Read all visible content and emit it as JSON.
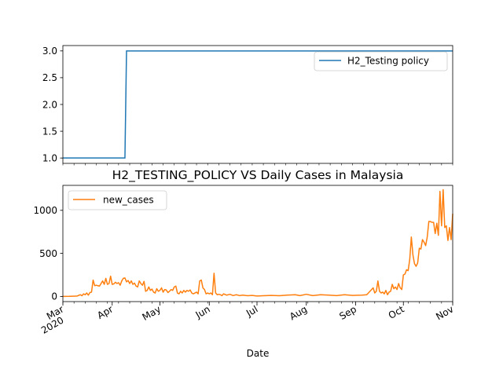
{
  "chart_data": [
    {
      "type": "line",
      "series": [
        {
          "name": "H2_Testing policy",
          "color": "#1f77b4",
          "points": [
            [
              "2020-03-01",
              1
            ],
            [
              "2020-04-09",
              1
            ],
            [
              "2020-04-10",
              3
            ],
            [
              "2020-11-01",
              3
            ]
          ]
        }
      ],
      "ylim": [
        0.9,
        3.1
      ],
      "yticks": [
        "1.0",
        "1.5",
        "2.0",
        "2.5",
        "3.0"
      ],
      "legend_position": "top-right",
      "grid": false
    },
    {
      "type": "line",
      "title": "H2_TESTING_POLICY VS Daily Cases in Malaysia",
      "xlabel": "Date",
      "series": [
        {
          "name": "new_cases",
          "color": "#ff7f0e",
          "points": [
            [
              "2020-03-01",
              0
            ],
            [
              "2020-03-05",
              1
            ],
            [
              "2020-03-08",
              3
            ],
            [
              "2020-03-10",
              5
            ],
            [
              "2020-03-12",
              20
            ],
            [
              "2020-03-13",
              8
            ],
            [
              "2020-03-14",
              30
            ],
            [
              "2020-03-15",
              20
            ],
            [
              "2020-03-16",
              40
            ],
            [
              "2020-03-17",
              15
            ],
            [
              "2020-03-18",
              45
            ],
            [
              "2020-03-19",
              50
            ],
            [
              "2020-03-20",
              190
            ],
            [
              "2020-03-21",
              125
            ],
            [
              "2020-03-22",
              130
            ],
            [
              "2020-03-23",
              125
            ],
            [
              "2020-03-24",
              120
            ],
            [
              "2020-03-25",
              150
            ],
            [
              "2020-03-26",
              180
            ],
            [
              "2020-03-27",
              140
            ],
            [
              "2020-03-28",
              210
            ],
            [
              "2020-03-29",
              140
            ],
            [
              "2020-03-30",
              150
            ],
            [
              "2020-03-31",
              235
            ],
            [
              "2020-04-01",
              140
            ],
            [
              "2020-04-02",
              145
            ],
            [
              "2020-04-03",
              165
            ],
            [
              "2020-04-04",
              150
            ],
            [
              "2020-04-05",
              160
            ],
            [
              "2020-04-06",
              130
            ],
            [
              "2020-04-07",
              180
            ],
            [
              "2020-04-08",
              210
            ],
            [
              "2020-04-09",
              215
            ],
            [
              "2020-04-10",
              170
            ],
            [
              "2020-04-11",
              185
            ],
            [
              "2020-04-12",
              150
            ],
            [
              "2020-04-13",
              180
            ],
            [
              "2020-04-14",
              140
            ],
            [
              "2020-04-15",
              155
            ],
            [
              "2020-04-16",
              120
            ],
            [
              "2020-04-17",
              110
            ],
            [
              "2020-04-18",
              180
            ],
            [
              "2020-04-19",
              150
            ],
            [
              "2020-04-20",
              130
            ],
            [
              "2020-04-21",
              175
            ],
            [
              "2020-04-22",
              60
            ],
            [
              "2020-04-23",
              70
            ],
            [
              "2020-04-24",
              110
            ],
            [
              "2020-04-25",
              70
            ],
            [
              "2020-04-26",
              85
            ],
            [
              "2020-04-27",
              50
            ],
            [
              "2020-04-28",
              40
            ],
            [
              "2020-04-29",
              90
            ],
            [
              "2020-04-30",
              60
            ],
            [
              "2020-05-01",
              70
            ],
            [
              "2020-05-02",
              100
            ],
            [
              "2020-05-03",
              50
            ],
            [
              "2020-05-04",
              80
            ],
            [
              "2020-05-05",
              75
            ],
            [
              "2020-05-06",
              45
            ],
            [
              "2020-05-07",
              60
            ],
            [
              "2020-05-08",
              80
            ],
            [
              "2020-05-09",
              70
            ],
            [
              "2020-05-10",
              110
            ],
            [
              "2020-05-11",
              120
            ],
            [
              "2020-05-12",
              40
            ],
            [
              "2020-05-13",
              30
            ],
            [
              "2020-05-14",
              60
            ],
            [
              "2020-05-15",
              40
            ],
            [
              "2020-05-16",
              70
            ],
            [
              "2020-05-17",
              50
            ],
            [
              "2020-05-18",
              70
            ],
            [
              "2020-05-19",
              60
            ],
            [
              "2020-05-20",
              75
            ],
            [
              "2020-05-21",
              40
            ],
            [
              "2020-05-22",
              30
            ],
            [
              "2020-05-23",
              40
            ],
            [
              "2020-05-24",
              50
            ],
            [
              "2020-05-25",
              30
            ],
            [
              "2020-05-26",
              180
            ],
            [
              "2020-05-27",
              190
            ],
            [
              "2020-05-28",
              100
            ],
            [
              "2020-05-29",
              80
            ],
            [
              "2020-05-30",
              30
            ],
            [
              "2020-05-31",
              40
            ],
            [
              "2020-06-01",
              30
            ],
            [
              "2020-06-02",
              40
            ],
            [
              "2020-06-03",
              20
            ],
            [
              "2020-06-04",
              270
            ],
            [
              "2020-06-05",
              40
            ],
            [
              "2020-06-06",
              20
            ],
            [
              "2020-06-07",
              25
            ],
            [
              "2020-06-08",
              20
            ],
            [
              "2020-06-09",
              10
            ],
            [
              "2020-06-10",
              30
            ],
            [
              "2020-06-12",
              15
            ],
            [
              "2020-06-14",
              25
            ],
            [
              "2020-06-16",
              10
            ],
            [
              "2020-06-18",
              20
            ],
            [
              "2020-06-20",
              10
            ],
            [
              "2020-06-22",
              15
            ],
            [
              "2020-06-25",
              8
            ],
            [
              "2020-06-28",
              12
            ],
            [
              "2020-07-01",
              5
            ],
            [
              "2020-07-05",
              8
            ],
            [
              "2020-07-10",
              12
            ],
            [
              "2020-07-15",
              8
            ],
            [
              "2020-07-20",
              15
            ],
            [
              "2020-07-25",
              20
            ],
            [
              "2020-07-28",
              10
            ],
            [
              "2020-08-01",
              25
            ],
            [
              "2020-08-05",
              10
            ],
            [
              "2020-08-10",
              20
            ],
            [
              "2020-08-15",
              15
            ],
            [
              "2020-08-20",
              10
            ],
            [
              "2020-08-25",
              20
            ],
            [
              "2020-08-30",
              12
            ],
            [
              "2020-09-05",
              15
            ],
            [
              "2020-09-08",
              20
            ],
            [
              "2020-09-10",
              60
            ],
            [
              "2020-09-12",
              100
            ],
            [
              "2020-09-13",
              40
            ],
            [
              "2020-09-14",
              60
            ],
            [
              "2020-09-15",
              180
            ],
            [
              "2020-09-16",
              60
            ],
            [
              "2020-09-17",
              40
            ],
            [
              "2020-09-18",
              50
            ],
            [
              "2020-09-19",
              30
            ],
            [
              "2020-09-20",
              70
            ],
            [
              "2020-09-21",
              20
            ],
            [
              "2020-09-22",
              50
            ],
            [
              "2020-09-23",
              60
            ],
            [
              "2020-09-24",
              140
            ],
            [
              "2020-09-25",
              90
            ],
            [
              "2020-09-26",
              110
            ],
            [
              "2020-09-27",
              80
            ],
            [
              "2020-09-28",
              150
            ],
            [
              "2020-09-29",
              100
            ],
            [
              "2020-09-30",
              80
            ],
            [
              "2020-10-01",
              250
            ],
            [
              "2020-10-02",
              260
            ],
            [
              "2020-10-03",
              310
            ],
            [
              "2020-10-04",
              300
            ],
            [
              "2020-10-05",
              430
            ],
            [
              "2020-10-06",
              690
            ],
            [
              "2020-10-07",
              480
            ],
            [
              "2020-10-08",
              380
            ],
            [
              "2020-10-09",
              350
            ],
            [
              "2020-10-10",
              390
            ],
            [
              "2020-10-11",
              560
            ],
            [
              "2020-10-12",
              550
            ],
            [
              "2020-10-13",
              660
            ],
            [
              "2020-10-14",
              630
            ],
            [
              "2020-10-15",
              590
            ],
            [
              "2020-10-16",
              690
            ],
            [
              "2020-10-17",
              870
            ],
            [
              "2020-10-18",
              870
            ],
            [
              "2020-10-19",
              860
            ],
            [
              "2020-10-20",
              860
            ],
            [
              "2020-10-21",
              730
            ],
            [
              "2020-10-22",
              850
            ],
            [
              "2020-10-23",
              710
            ],
            [
              "2020-10-24",
              1220
            ],
            [
              "2020-10-25",
              820
            ],
            [
              "2020-10-26",
              1240
            ],
            [
              "2020-10-27",
              800
            ],
            [
              "2020-10-28",
              820
            ],
            [
              "2020-10-29",
              650
            ],
            [
              "2020-10-30",
              800
            ],
            [
              "2020-10-31",
              660
            ],
            [
              "2020-11-01",
              960
            ]
          ]
        }
      ],
      "ylim": [
        -60,
        1290
      ],
      "yticks": [
        "0",
        "500",
        "1000"
      ],
      "xticks": [
        {
          "date": "2020-03-01",
          "label": "Mar",
          "sublabel": "2020"
        },
        {
          "date": "2020-04-01",
          "label": "Apr"
        },
        {
          "date": "2020-05-01",
          "label": "May"
        },
        {
          "date": "2020-06-01",
          "label": "Jun"
        },
        {
          "date": "2020-07-01",
          "label": "Jul"
        },
        {
          "date": "2020-08-01",
          "label": "Aug"
        },
        {
          "date": "2020-09-01",
          "label": "Sep"
        },
        {
          "date": "2020-10-01",
          "label": "Oct"
        },
        {
          "date": "2020-11-01",
          "label": "Nov"
        }
      ],
      "xlim": [
        "2020-03-01",
        "2020-11-01"
      ],
      "legend_position": "top-left",
      "grid": false
    }
  ]
}
